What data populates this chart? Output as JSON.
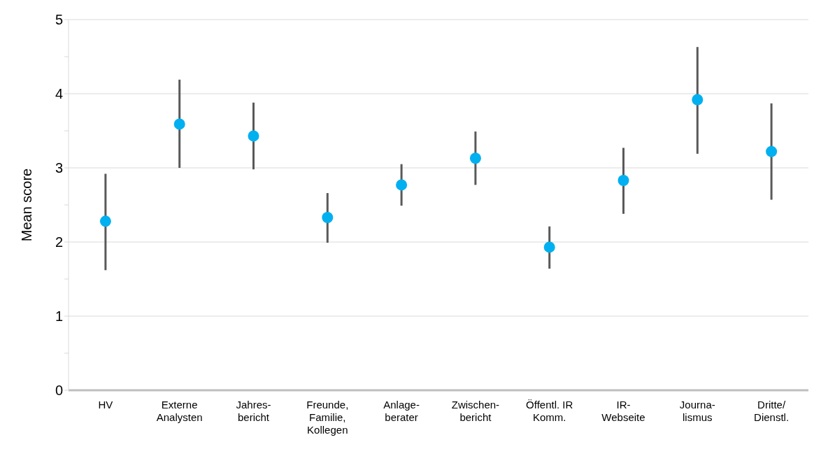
{
  "chart_data": {
    "type": "scatter",
    "ylabel": "Mean score",
    "categories": [
      "HV",
      "Externe\nAnalysten",
      "Jahres-\nbericht",
      "Freunde,\nFamilie,\nKollegen",
      "Anlage-\nberater",
      "Zwischen-\nbericht",
      "Öffentl. IR\nKomm.",
      "IR-\nWebseite",
      "Journa-\nlismus",
      "Dritte/\nDienstl."
    ],
    "series": [
      {
        "color": "#00b0f0",
        "values": [
          2.28,
          3.59,
          3.43,
          2.33,
          2.77,
          3.13,
          1.93,
          2.83,
          3.92,
          3.22
        ],
        "errors": [
          [
            1.62,
            2.92
          ],
          [
            3.0,
            4.19
          ],
          [
            2.98,
            3.88
          ],
          [
            1.99,
            2.66
          ],
          [
            2.49,
            3.05
          ],
          [
            2.77,
            3.49
          ],
          [
            1.64,
            2.21
          ],
          [
            2.38,
            3.27
          ],
          [
            3.19,
            4.63
          ],
          [
            2.57,
            3.87
          ]
        ]
      }
    ],
    "ylim": [
      0,
      5
    ],
    "yticks": [
      0,
      {
        "value": 0.5,
        "label": null
      },
      1,
      {
        "value": 1.5,
        "label": null
      },
      2,
      {
        "value": 2.5,
        "label": null
      },
      3,
      {
        "value": 3.5,
        "label": null
      },
      4,
      {
        "value": 4.5,
        "label": null
      },
      5
    ],
    "grid": "y",
    "marker": "circle"
  }
}
